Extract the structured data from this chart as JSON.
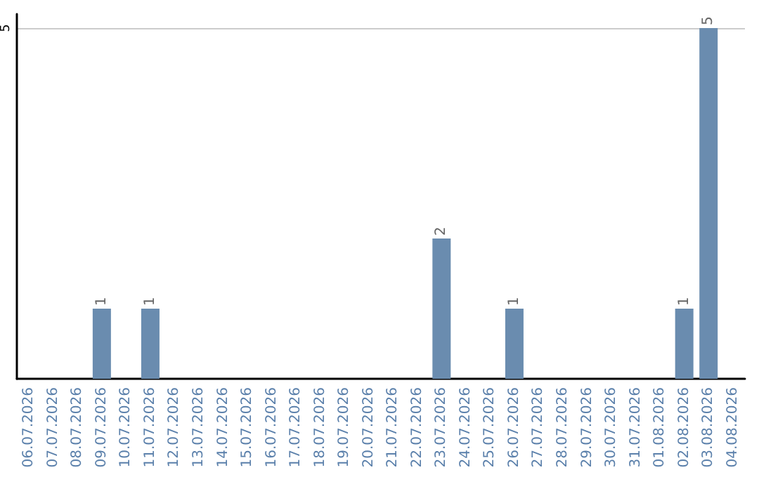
{
  "chart_data": {
    "type": "bar",
    "categories": [
      "06.07.2026",
      "07.07.2026",
      "08.07.2026",
      "09.07.2026",
      "10.07.2026",
      "11.07.2026",
      "12.07.2026",
      "13.07.2026",
      "14.07.2026",
      "15.07.2026",
      "16.07.2026",
      "17.07.2026",
      "18.07.2026",
      "19.07.2026",
      "20.07.2026",
      "21.07.2026",
      "22.07.2026",
      "23.07.2026",
      "24.07.2026",
      "25.07.2026",
      "26.07.2026",
      "27.07.2026",
      "28.07.2026",
      "29.07.2026",
      "30.07.2026",
      "31.07.2026",
      "01.08.2026",
      "02.08.2026",
      "03.08.2026",
      "04.08.2026"
    ],
    "values": [
      0,
      0,
      0,
      1,
      0,
      1,
      0,
      0,
      0,
      0,
      0,
      0,
      0,
      0,
      0,
      0,
      0,
      2,
      0,
      0,
      1,
      0,
      0,
      0,
      0,
      0,
      0,
      1,
      5,
      0
    ],
    "value_labels": [
      null,
      null,
      null,
      "1",
      null,
      "1",
      null,
      null,
      null,
      null,
      null,
      null,
      null,
      null,
      null,
      null,
      null,
      "2",
      null,
      null,
      "1",
      null,
      null,
      null,
      null,
      null,
      null,
      "1",
      "5",
      null
    ],
    "color": "#6a8caf",
    "ylim": [
      0,
      5.2
    ],
    "yticks": [
      5
    ],
    "grid": "y"
  }
}
